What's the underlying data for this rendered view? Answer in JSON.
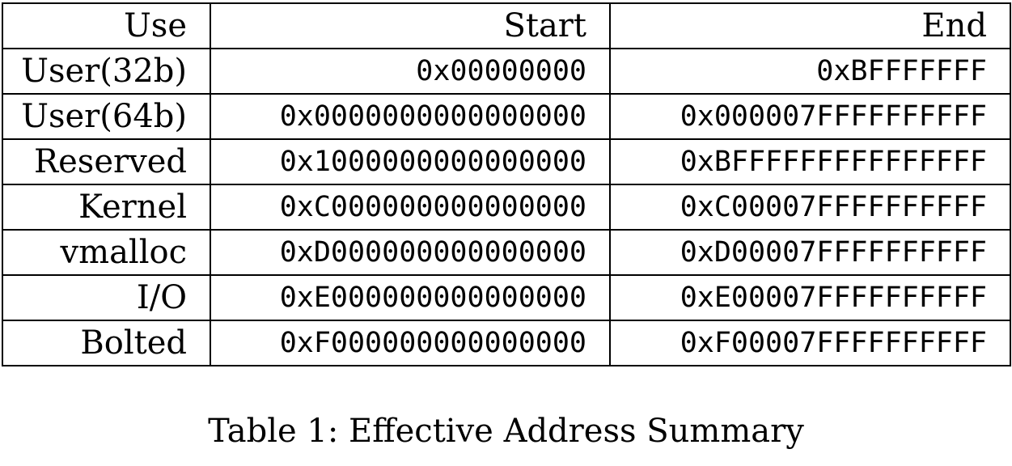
{
  "table": {
    "headers": [
      "Use",
      "Start",
      "End"
    ],
    "rows": [
      {
        "use": "User(32b)",
        "start": "0x00000000",
        "end": "0xBFFFFFFF"
      },
      {
        "use": "User(64b)",
        "start": "0x0000000000000000",
        "end": "0x000007FFFFFFFFFF"
      },
      {
        "use": "Reserved",
        "start": "0x1000000000000000",
        "end": "0xBFFFFFFFFFFFFFFF"
      },
      {
        "use": "Kernel",
        "start": "0xC000000000000000",
        "end": "0xC00007FFFFFFFFFF"
      },
      {
        "use": "vmalloc",
        "start": "0xD000000000000000",
        "end": "0xD00007FFFFFFFFFF"
      },
      {
        "use": "I/O",
        "start": "0xE000000000000000",
        "end": "0xE00007FFFFFFFFFF"
      },
      {
        "use": "Bolted",
        "start": "0xF000000000000000",
        "end": "0xF00007FFFFFFFFFF"
      }
    ]
  },
  "caption": "Table 1: Effective Address Summary"
}
